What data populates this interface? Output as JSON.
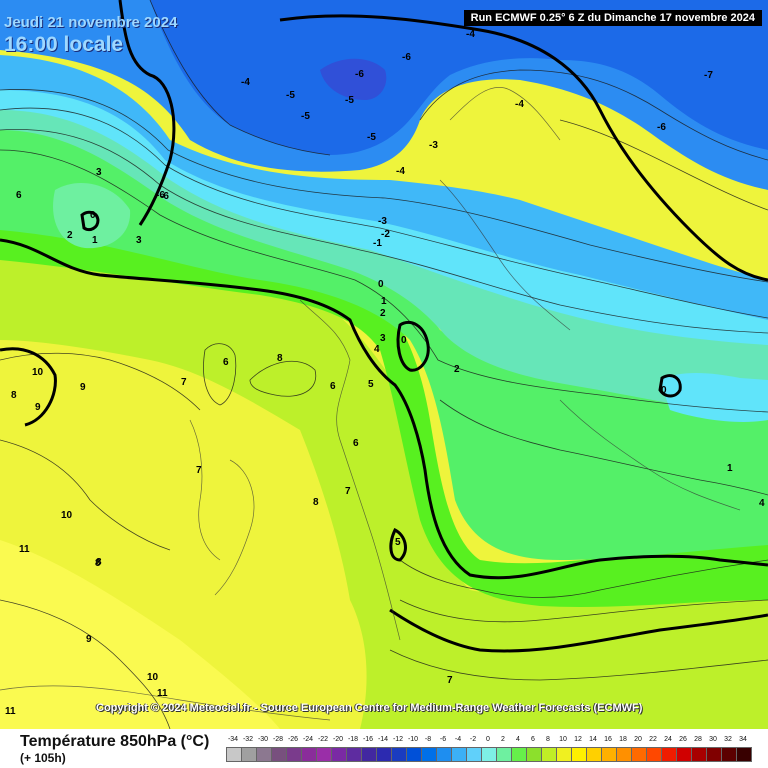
{
  "header": {
    "date": "Jeudi 21 novembre 2024",
    "time": "16:00 locale",
    "run": "Run ECMWF 0.25° 6 Z du Dimanche 17 novembre 2024"
  },
  "footer": {
    "title": "Température 850hPa (°C)",
    "lead": "(+ 105h)",
    "copyright": "Copyright © 2024 Meteociel.fr - Source European Centre for Medium-Range Weather Forecasts (ECMWF)"
  },
  "legend": {
    "labels": [
      "-34",
      "-32",
      "-30",
      "-28",
      "-26",
      "-24",
      "-22",
      "-20",
      "-18",
      "-16",
      "-14",
      "-12",
      "-10",
      "-8",
      "-6",
      "-4",
      "-2",
      "0",
      "2",
      "4",
      "6",
      "8",
      "10",
      "12",
      "14",
      "16",
      "18",
      "20",
      "22",
      "24",
      "26",
      "28",
      "30",
      "32",
      "34"
    ],
    "colors": [
      "#c8c8c8",
      "#a0a0a0",
      "#8c7890",
      "#78507e",
      "#7a3b8c",
      "#8a2d9a",
      "#9a2ea8",
      "#7a2aa4",
      "#5e2ca0",
      "#4228a0",
      "#2c2ab0",
      "#1a3cc0",
      "#0050d8",
      "#0070e8",
      "#1e8ef0",
      "#3cb0f6",
      "#60d0fa",
      "#7ef0e6",
      "#6ef0a0",
      "#66f04a",
      "#8ce02c",
      "#c0ee26",
      "#f0f020",
      "#fff000",
      "#ffd000",
      "#ffb000",
      "#ff9000",
      "#ff6a00",
      "#ff4800",
      "#f01c00",
      "#d00000",
      "#a80000",
      "#800000",
      "#5c0000",
      "#380000"
    ]
  },
  "map": {
    "colors": {
      "cold_blue": "#1c6ae8",
      "blue": "#2c8cf2",
      "light_blue": "#40b8f8",
      "cyan": "#60e4fa",
      "aqua": "#66e6b8",
      "green": "#54f068",
      "bright_green": "#58f020",
      "yellow_green": "#bdf02a",
      "yellow": "#eef43c",
      "pale_yellow": "#fafa50"
    },
    "contour_labels": [
      {
        "text": "-4"
      },
      {
        "text": "-6"
      },
      {
        "text": "-5"
      },
      {
        "text": "-5"
      },
      {
        "text": "-6"
      },
      {
        "text": "-6"
      },
      {
        "text": "-5"
      },
      {
        "text": "-4"
      },
      {
        "text": "-5"
      },
      {
        "text": "-4"
      },
      {
        "text": "-3"
      },
      {
        "text": "-4"
      },
      {
        "text": "-7"
      },
      {
        "text": "-6"
      },
      {
        "text": "-6"
      },
      {
        "text": "-3"
      },
      {
        "text": "-2"
      },
      {
        "text": "-1"
      },
      {
        "text": "0"
      },
      {
        "text": "1"
      },
      {
        "text": "2"
      },
      {
        "text": "3"
      },
      {
        "text": "4"
      },
      {
        "text": "0"
      },
      {
        "text": "2"
      },
      {
        "text": "5"
      },
      {
        "text": "6"
      },
      {
        "text": "6"
      },
      {
        "text": "7"
      },
      {
        "text": "8"
      },
      {
        "text": "6"
      },
      {
        "text": "7"
      },
      {
        "text": "7"
      },
      {
        "text": "8"
      },
      {
        "text": "8"
      },
      {
        "text": "10"
      },
      {
        "text": "8"
      },
      {
        "text": "9"
      },
      {
        "text": "9"
      },
      {
        "text": "10"
      },
      {
        "text": "11"
      },
      {
        "text": "8"
      },
      {
        "text": "9"
      },
      {
        "text": "10"
      },
      {
        "text": "11"
      },
      {
        "text": "11"
      },
      {
        "text": "5"
      },
      {
        "text": "0"
      },
      {
        "text": "1"
      },
      {
        "text": "4"
      },
      {
        "text": "7"
      },
      {
        "text": "3"
      },
      {
        "text": "0"
      },
      {
        "text": "1"
      },
      {
        "text": "2"
      },
      {
        "text": "3"
      },
      {
        "text": "6"
      }
    ]
  }
}
